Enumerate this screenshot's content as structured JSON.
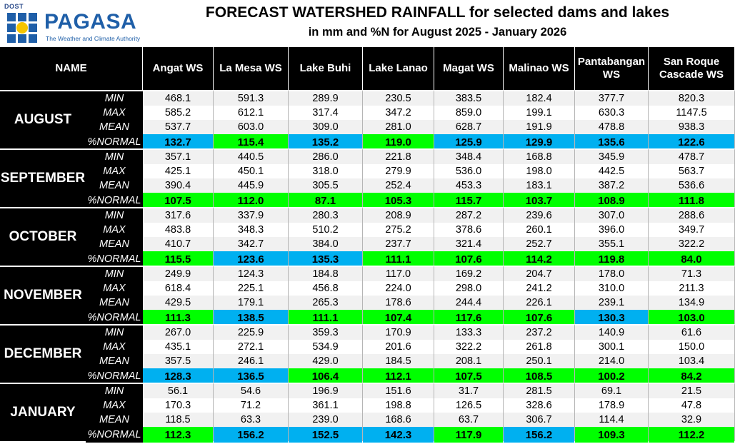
{
  "header": {
    "dost": "DOST",
    "brand": "PAGASA",
    "tagline": "The Weather and Climate Authority",
    "title": "FORECAST WATERSHED RAINFALL for selected dams and lakes",
    "subtitle": "in mm and %N for August 2025 - January 2026"
  },
  "table": {
    "name_header": "NAME",
    "row_labels": [
      "MIN",
      "MAX",
      "MEAN",
      "%NORMAL"
    ],
    "columns": [
      "Angat WS",
      "La Mesa WS",
      "Lake Buhi",
      "Lake Lanao",
      "Magat WS",
      "Malinao WS",
      "Pantabangan WS",
      "San Roque Cascade WS"
    ],
    "colors": {
      "green": "#00ff00",
      "blue": "#00b0f0"
    },
    "months": [
      {
        "name": "AUGUST",
        "rows": [
          [
            "468.1",
            "591.3",
            "289.9",
            "230.5",
            "383.5",
            "182.4",
            "377.7",
            "820.3"
          ],
          [
            "585.2",
            "612.1",
            "317.4",
            "347.2",
            "859.0",
            "199.1",
            "630.3",
            "1147.5"
          ],
          [
            "537.7",
            "603.0",
            "309.0",
            "281.0",
            "628.7",
            "191.9",
            "478.8",
            "938.3"
          ],
          [
            "132.7",
            "115.4",
            "135.2",
            "119.0",
            "125.9",
            "129.9",
            "135.6",
            "122.6"
          ]
        ],
        "normal_color": [
          "blue",
          "green",
          "blue",
          "green",
          "blue",
          "blue",
          "blue",
          "blue"
        ]
      },
      {
        "name": "SEPTEMBER",
        "rows": [
          [
            "357.1",
            "440.5",
            "286.0",
            "221.8",
            "348.4",
            "168.8",
            "345.9",
            "478.7"
          ],
          [
            "425.1",
            "450.1",
            "318.0",
            "279.9",
            "536.0",
            "198.0",
            "442.5",
            "563.7"
          ],
          [
            "390.4",
            "445.9",
            "305.5",
            "252.4",
            "453.3",
            "183.1",
            "387.2",
            "536.6"
          ],
          [
            "107.5",
            "112.0",
            "87.1",
            "105.3",
            "115.7",
            "103.7",
            "108.9",
            "111.8"
          ]
        ],
        "normal_color": [
          "green",
          "green",
          "green",
          "green",
          "green",
          "green",
          "green",
          "green"
        ]
      },
      {
        "name": "OCTOBER",
        "rows": [
          [
            "317.6",
            "337.9",
            "280.3",
            "208.9",
            "287.2",
            "239.6",
            "307.0",
            "288.6"
          ],
          [
            "483.8",
            "348.3",
            "510.2",
            "275.2",
            "378.6",
            "260.1",
            "396.0",
            "349.7"
          ],
          [
            "410.7",
            "342.7",
            "384.0",
            "237.7",
            "321.4",
            "252.7",
            "355.1",
            "322.2"
          ],
          [
            "115.5",
            "123.6",
            "135.3",
            "111.1",
            "107.6",
            "114.2",
            "119.8",
            "84.0"
          ]
        ],
        "normal_color": [
          "green",
          "blue",
          "blue",
          "green",
          "green",
          "green",
          "green",
          "green"
        ]
      },
      {
        "name": "NOVEMBER",
        "rows": [
          [
            "249.9",
            "124.3",
            "184.8",
            "117.0",
            "169.2",
            "204.7",
            "178.0",
            "71.3"
          ],
          [
            "618.4",
            "225.1",
            "456.8",
            "224.0",
            "298.0",
            "241.2",
            "310.0",
            "211.3"
          ],
          [
            "429.5",
            "179.1",
            "265.3",
            "178.6",
            "244.4",
            "226.1",
            "239.1",
            "134.9"
          ],
          [
            "111.3",
            "138.5",
            "111.1",
            "107.4",
            "117.6",
            "107.6",
            "130.3",
            "103.0"
          ]
        ],
        "normal_color": [
          "green",
          "blue",
          "green",
          "green",
          "green",
          "green",
          "blue",
          "green"
        ]
      },
      {
        "name": "DECEMBER",
        "rows": [
          [
            "267.0",
            "225.9",
            "359.3",
            "170.9",
            "133.3",
            "237.2",
            "140.9",
            "61.6"
          ],
          [
            "435.1",
            "272.1",
            "534.9",
            "201.6",
            "322.2",
            "261.8",
            "300.1",
            "150.0"
          ],
          [
            "357.5",
            "246.1",
            "429.0",
            "184.5",
            "208.1",
            "250.1",
            "214.0",
            "103.4"
          ],
          [
            "128.3",
            "136.5",
            "106.4",
            "112.1",
            "107.5",
            "108.5",
            "100.2",
            "84.2"
          ]
        ],
        "normal_color": [
          "blue",
          "blue",
          "green",
          "green",
          "green",
          "green",
          "green",
          "green"
        ]
      },
      {
        "name": "JANUARY",
        "rows": [
          [
            "56.1",
            "54.6",
            "196.9",
            "151.6",
            "31.7",
            "281.5",
            "69.1",
            "21.5"
          ],
          [
            "170.3",
            "71.2",
            "361.1",
            "198.8",
            "126.5",
            "328.6",
            "178.9",
            "47.8"
          ],
          [
            "118.5",
            "63.3",
            "239.0",
            "168.6",
            "63.7",
            "306.7",
            "114.4",
            "32.9"
          ],
          [
            "112.3",
            "156.2",
            "152.5",
            "142.3",
            "117.9",
            "156.2",
            "109.3",
            "112.2"
          ]
        ],
        "normal_color": [
          "green",
          "blue",
          "blue",
          "blue",
          "green",
          "blue",
          "green",
          "green"
        ]
      }
    ]
  }
}
